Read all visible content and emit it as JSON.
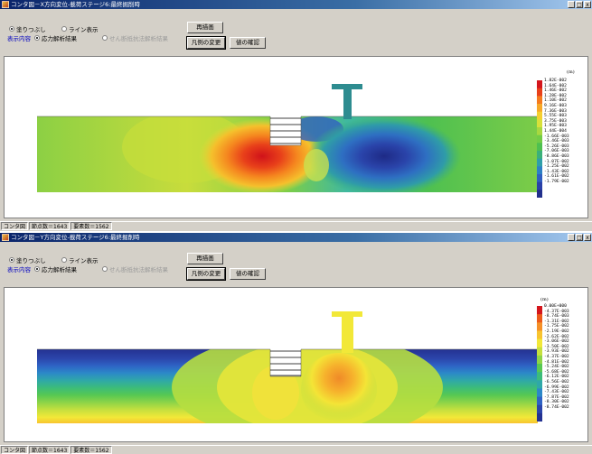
{
  "colors": {
    "ramp1": [
      "#d4161c",
      "#e8401a",
      "#f57a1e",
      "#f7a828",
      "#f5d030",
      "#d8e03a",
      "#a8d840",
      "#72cc46",
      "#4ec050",
      "#3bb07a",
      "#2f9fa8",
      "#2d80c4",
      "#2f5ec0",
      "#2a40a8",
      "#22308c"
    ],
    "ramp2": [
      "#d4161c",
      "#ec5a1a",
      "#f59028",
      "#f8c430",
      "#f2e838",
      "#c6e03e",
      "#8ed448",
      "#58c852",
      "#3cbc7a",
      "#2fa8a8",
      "#2c88c8",
      "#2e62c4",
      "#2b44aa",
      "#243292"
    ]
  },
  "window1": {
    "title": "コンタ図－X方向変位-載荷ステージ6:最終掘削時",
    "radio_fill": "塗りつぶし",
    "radio_line": "ライン表示",
    "display_content_label": "表示内容",
    "radio_stress": "応力解析結果",
    "radio_other": "せん断抵抗法解析結果",
    "btn_redraw": "再描画",
    "btn_legend": "凡例の変更",
    "btn_value": "値の確認",
    "legend_unit": "(m)",
    "legend_values": [
      "1.82E-002",
      "1.64E-002",
      "1.46E-002",
      "1.28E-002",
      "1.10E-002",
      "9.16E-003",
      "7.36E-003",
      "5.55E-003",
      "3.75E-003",
      "1.95E-003",
      "1.44E-004",
      "-1.66E-003",
      "-3.46E-003",
      "-5.26E-003",
      "-7.06E-003",
      "-8.86E-003",
      "-1.07E-002",
      "-1.25E-002",
      "-1.43E-002",
      "-1.61E-002",
      "-1.79E-002"
    ],
    "status": [
      "コンタ図",
      "節点数＝1643",
      "要素数＝1562"
    ]
  },
  "window2": {
    "title": "コンタ図－Y方向変位-載荷ステージ6:最終掘削時",
    "radio_fill": "塗りつぶし",
    "radio_line": "ライン表示",
    "display_content_label": "表示内容",
    "radio_stress": "応力解析結果",
    "radio_other": "せん断抵抗法解析結果",
    "btn_redraw": "再描画",
    "btn_legend": "凡例の変更",
    "btn_value": "値の確認",
    "legend_unit": "(m)",
    "legend_values": [
      "0.00E+000",
      "-4.37E-003",
      "-8.74E-003",
      "-1.31E-002",
      "-1.75E-002",
      "-2.19E-002",
      "-2.62E-002",
      "-3.06E-002",
      "-3.50E-002",
      "-3.93E-002",
      "-4.37E-002",
      "-4.81E-002",
      "-5.24E-002",
      "-5.68E-002",
      "-6.12E-002",
      "-6.56E-002",
      "-6.99E-002",
      "-7.43E-002",
      "-7.87E-002",
      "-8.30E-002",
      "-8.74E-002"
    ],
    "status": [
      "コンタ図",
      "節点数＝1643",
      "要素数＝1562"
    ]
  }
}
